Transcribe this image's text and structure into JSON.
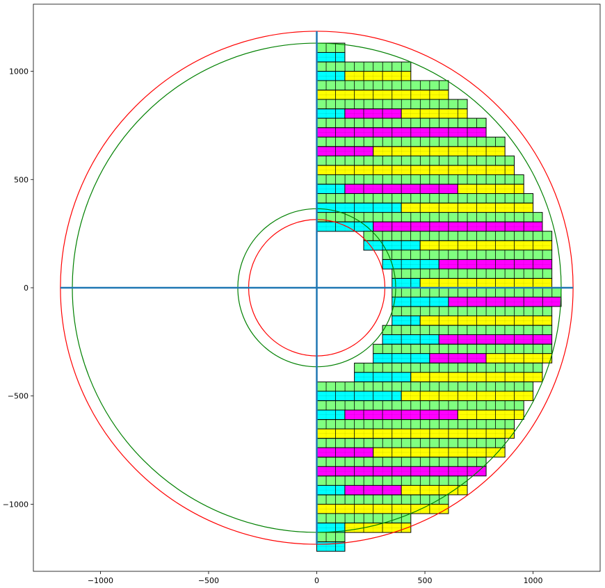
{
  "chart_data": {
    "type": "scatter",
    "description": "",
    "xlim": [
      -1310,
      1310
    ],
    "ylim": [
      -1310,
      1310
    ],
    "xticks": [
      -1000,
      -500,
      0,
      500,
      1000
    ],
    "yticks": [
      -1000,
      -500,
      0,
      500,
      1000
    ],
    "xtick_labels": [
      "−1000",
      "−500",
      "0",
      "500",
      "1000"
    ],
    "ytick_labels": [
      "−1000",
      "−500",
      "0",
      "500",
      "1000"
    ],
    "grid": false,
    "circles": [
      {
        "r": 1185,
        "color": "#ff0000"
      },
      {
        "r": 1130,
        "color": "#008000"
      },
      {
        "r": 315,
        "color": "#ff0000"
      },
      {
        "r": 365,
        "color": "#008000"
      }
    ],
    "axes_lines": {
      "x_extent": [
        -1185,
        1185
      ],
      "y_extent": [
        -1185,
        1185
      ],
      "color": "#1f77b4"
    },
    "colors": {
      "small": "#80ff80",
      "cyan": "#00ffff",
      "magenta": "#ff00ff",
      "yellow": "#ffff00",
      "edge": "#000000"
    },
    "cell_sizes": {
      "small": [
        43.5,
        43.5
      ],
      "large": [
        87,
        87
      ]
    },
    "rows": [
      {
        "y": 1130,
        "h": 43.5,
        "segments": [
          {
            "x0": 0,
            "x1": 130,
            "c": "small"
          }
        ]
      },
      {
        "y": 1087,
        "h": 43.5,
        "segments": [
          {
            "x0": 0,
            "x1": 130,
            "c": "cyan"
          }
        ]
      },
      {
        "y": 1043,
        "h": 43.5,
        "segments": [
          {
            "x0": 0,
            "x1": 435,
            "c": "small"
          }
        ]
      },
      {
        "y": 1000,
        "h": 43.5,
        "segments": [
          {
            "x0": 0,
            "x1": 130,
            "c": "cyan"
          },
          {
            "x0": 130,
            "x1": 435,
            "c": "yellow"
          }
        ]
      },
      {
        "y": 957,
        "h": 43.5,
        "segments": [
          {
            "x0": 0,
            "x1": 609,
            "c": "small"
          }
        ]
      },
      {
        "y": 913,
        "h": 43.5,
        "segments": [
          {
            "x0": 0,
            "x1": 609,
            "c": "yellow"
          }
        ]
      },
      {
        "y": 870,
        "h": 43.5,
        "segments": [
          {
            "x0": 0,
            "x1": 696,
            "c": "small"
          }
        ]
      },
      {
        "y": 826,
        "h": 43.5,
        "segments": [
          {
            "x0": 0,
            "x1": 130,
            "c": "cyan"
          },
          {
            "x0": 130,
            "x1": 391,
            "c": "magenta"
          },
          {
            "x0": 391,
            "x1": 696,
            "c": "yellow"
          }
        ]
      },
      {
        "y": 783,
        "h": 43.5,
        "segments": [
          {
            "x0": 0,
            "x1": 783,
            "c": "small"
          }
        ]
      },
      {
        "y": 739,
        "h": 43.5,
        "segments": [
          {
            "x0": 0,
            "x1": 783,
            "c": "magenta"
          }
        ]
      },
      {
        "y": 696,
        "h": 43.5,
        "segments": [
          {
            "x0": 0,
            "x1": 870,
            "c": "small"
          }
        ]
      },
      {
        "y": 652,
        "h": 43.5,
        "segments": [
          {
            "x0": 0,
            "x1": 261,
            "c": "magenta"
          },
          {
            "x0": 261,
            "x1": 870,
            "c": "yellow"
          }
        ]
      },
      {
        "y": 609,
        "h": 43.5,
        "segments": [
          {
            "x0": 0,
            "x1": 913,
            "c": "small"
          }
        ]
      },
      {
        "y": 565,
        "h": 43.5,
        "segments": [
          {
            "x0": 0,
            "x1": 913,
            "c": "yellow"
          }
        ]
      },
      {
        "y": 522,
        "h": 43.5,
        "segments": [
          {
            "x0": 0,
            "x1": 957,
            "c": "small"
          }
        ]
      },
      {
        "y": 478,
        "h": 43.5,
        "segments": [
          {
            "x0": 0,
            "x1": 130,
            "c": "cyan"
          },
          {
            "x0": 130,
            "x1": 652,
            "c": "magenta"
          },
          {
            "x0": 652,
            "x1": 957,
            "c": "yellow"
          }
        ]
      },
      {
        "y": 435,
        "h": 43.5,
        "segments": [
          {
            "x0": 0,
            "x1": 1000,
            "c": "small"
          }
        ]
      },
      {
        "y": 391,
        "h": 43.5,
        "segments": [
          {
            "x0": 0,
            "x1": 391,
            "c": "cyan"
          },
          {
            "x0": 391,
            "x1": 1000,
            "c": "yellow"
          }
        ]
      },
      {
        "y": 348,
        "h": 43.5,
        "segments": [
          {
            "x0": 0,
            "x1": 1043,
            "c": "small"
          }
        ]
      },
      {
        "y": 304,
        "h": 43.5,
        "segments": [
          {
            "x0": 0,
            "x1": 261,
            "c": "cyan"
          },
          {
            "x0": 261,
            "x1": 1043,
            "c": "magenta"
          }
        ]
      },
      {
        "y": 261,
        "h": 43.5,
        "segments": [
          {
            "x0": 217,
            "x1": 1087,
            "c": "small"
          }
        ]
      },
      {
        "y": 217,
        "h": 43.5,
        "segments": [
          {
            "x0": 217,
            "x1": 478,
            "c": "cyan"
          },
          {
            "x0": 478,
            "x1": 1087,
            "c": "yellow"
          }
        ]
      },
      {
        "y": 174,
        "h": 43.5,
        "segments": [
          {
            "x0": 304,
            "x1": 1087,
            "c": "small"
          }
        ]
      },
      {
        "y": 130,
        "h": 43.5,
        "segments": [
          {
            "x0": 304,
            "x1": 565,
            "c": "cyan"
          },
          {
            "x0": 565,
            "x1": 1087,
            "c": "magenta"
          }
        ]
      },
      {
        "y": 87,
        "h": 43.5,
        "segments": [
          {
            "x0": 348,
            "x1": 1087,
            "c": "small"
          }
        ]
      },
      {
        "y": 43,
        "h": 43.5,
        "segments": [
          {
            "x0": 348,
            "x1": 478,
            "c": "cyan"
          },
          {
            "x0": 478,
            "x1": 1087,
            "c": "yellow"
          }
        ]
      },
      {
        "y": 0,
        "h": 43.5,
        "segments": [
          {
            "x0": 348,
            "x1": 1130,
            "c": "small"
          }
        ]
      },
      {
        "y": -43,
        "h": 43.5,
        "segments": [
          {
            "x0": 348,
            "x1": 609,
            "c": "cyan"
          },
          {
            "x0": 609,
            "x1": 1130,
            "c": "magenta"
          }
        ]
      },
      {
        "y": -87,
        "h": 43.5,
        "segments": [
          {
            "x0": 348,
            "x1": 1087,
            "c": "small"
          }
        ]
      },
      {
        "y": -130,
        "h": 43.5,
        "segments": [
          {
            "x0": 348,
            "x1": 478,
            "c": "cyan"
          },
          {
            "x0": 478,
            "x1": 1087,
            "c": "yellow"
          }
        ]
      },
      {
        "y": -174,
        "h": 43.5,
        "segments": [
          {
            "x0": 304,
            "x1": 1087,
            "c": "small"
          }
        ]
      },
      {
        "y": -217,
        "h": 43.5,
        "segments": [
          {
            "x0": 304,
            "x1": 565,
            "c": "cyan"
          },
          {
            "x0": 565,
            "x1": 1087,
            "c": "magenta"
          }
        ]
      },
      {
        "y": -261,
        "h": 43.5,
        "segments": [
          {
            "x0": 261,
            "x1": 1087,
            "c": "small"
          }
        ]
      },
      {
        "y": -304,
        "h": 43.5,
        "segments": [
          {
            "x0": 261,
            "x1": 522,
            "c": "cyan"
          },
          {
            "x0": 522,
            "x1": 783,
            "c": "magenta"
          },
          {
            "x0": 783,
            "x1": 1087,
            "c": "yellow"
          }
        ]
      },
      {
        "y": -348,
        "h": 43.5,
        "segments": [
          {
            "x0": 174,
            "x1": 1043,
            "c": "small"
          }
        ]
      },
      {
        "y": -391,
        "h": 43.5,
        "segments": [
          {
            "x0": 174,
            "x1": 435,
            "c": "cyan"
          },
          {
            "x0": 435,
            "x1": 1043,
            "c": "yellow"
          }
        ]
      },
      {
        "y": -435,
        "h": 43.5,
        "segments": [
          {
            "x0": 0,
            "x1": 1000,
            "c": "small"
          }
        ]
      },
      {
        "y": -478,
        "h": 43.5,
        "segments": [
          {
            "x0": 0,
            "x1": 391,
            "c": "cyan"
          },
          {
            "x0": 391,
            "x1": 1000,
            "c": "yellow"
          }
        ]
      },
      {
        "y": -522,
        "h": 43.5,
        "segments": [
          {
            "x0": 0,
            "x1": 957,
            "c": "small"
          }
        ]
      },
      {
        "y": -565,
        "h": 43.5,
        "segments": [
          {
            "x0": 0,
            "x1": 130,
            "c": "cyan"
          },
          {
            "x0": 130,
            "x1": 652,
            "c": "magenta"
          },
          {
            "x0": 652,
            "x1": 957,
            "c": "yellow"
          }
        ]
      },
      {
        "y": -609,
        "h": 43.5,
        "segments": [
          {
            "x0": 0,
            "x1": 913,
            "c": "small"
          }
        ]
      },
      {
        "y": -652,
        "h": 43.5,
        "segments": [
          {
            "x0": 0,
            "x1": 913,
            "c": "yellow"
          }
        ]
      },
      {
        "y": -696,
        "h": 43.5,
        "segments": [
          {
            "x0": 0,
            "x1": 870,
            "c": "small"
          }
        ]
      },
      {
        "y": -739,
        "h": 43.5,
        "segments": [
          {
            "x0": 0,
            "x1": 261,
            "c": "magenta"
          },
          {
            "x0": 261,
            "x1": 870,
            "c": "yellow"
          }
        ]
      },
      {
        "y": -783,
        "h": 43.5,
        "segments": [
          {
            "x0": 0,
            "x1": 783,
            "c": "small"
          }
        ]
      },
      {
        "y": -826,
        "h": 43.5,
        "segments": [
          {
            "x0": 0,
            "x1": 783,
            "c": "magenta"
          }
        ]
      },
      {
        "y": -870,
        "h": 43.5,
        "segments": [
          {
            "x0": 0,
            "x1": 696,
            "c": "small"
          }
        ]
      },
      {
        "y": -913,
        "h": 43.5,
        "segments": [
          {
            "x0": 0,
            "x1": 130,
            "c": "cyan"
          },
          {
            "x0": 130,
            "x1": 391,
            "c": "magenta"
          },
          {
            "x0": 391,
            "x1": 696,
            "c": "yellow"
          }
        ]
      },
      {
        "y": -957,
        "h": 43.5,
        "segments": [
          {
            "x0": 0,
            "x1": 609,
            "c": "small"
          }
        ]
      },
      {
        "y": -1000,
        "h": 43.5,
        "segments": [
          {
            "x0": 0,
            "x1": 609,
            "c": "yellow"
          }
        ]
      },
      {
        "y": -1043,
        "h": 43.5,
        "segments": [
          {
            "x0": 0,
            "x1": 435,
            "c": "small"
          }
        ]
      },
      {
        "y": -1087,
        "h": 43.5,
        "segments": [
          {
            "x0": 0,
            "x1": 130,
            "c": "cyan"
          },
          {
            "x0": 130,
            "x1": 435,
            "c": "yellow"
          }
        ]
      },
      {
        "y": -1130,
        "h": 43.5,
        "segments": [
          {
            "x0": 0,
            "x1": 130,
            "c": "small"
          }
        ]
      },
      {
        "y": -1174,
        "h": 43.5,
        "segments": [
          {
            "x0": 0,
            "x1": 130,
            "c": "cyan"
          }
        ]
      }
    ]
  }
}
